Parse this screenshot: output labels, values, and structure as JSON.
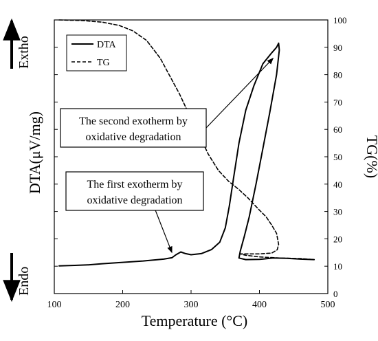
{
  "chart_data": {
    "type": "line",
    "xlabel": "Temperature (°C)",
    "ylabel_left": "DTA(μV/mg)",
    "ylabel_right": "TG(%)",
    "xlim": [
      100,
      500
    ],
    "xticks": [
      100,
      200,
      300,
      400,
      500
    ],
    "y2lim": [
      0,
      100
    ],
    "y2ticks": [
      0,
      10,
      20,
      30,
      40,
      50,
      60,
      70,
      80,
      90,
      100
    ],
    "y1lim": [
      0,
      100
    ],
    "y1_tick_labels": "none",
    "legend": {
      "placement": "top-left",
      "entries": [
        {
          "label": "DTA",
          "style": "solid"
        },
        {
          "label": "TG",
          "style": "dashed"
        }
      ]
    },
    "side_labels": {
      "top": "Extho",
      "bottom": "Endo"
    },
    "annotations": [
      {
        "line1": "The second exotherm by",
        "line2": "oxidative degradation",
        "target": [
          420,
          86
        ]
      },
      {
        "line1": "The first exotherm by",
        "line2": "oxidative degradation",
        "target": [
          272,
          15
        ]
      }
    ],
    "series": [
      {
        "name": "DTA",
        "style": "solid",
        "axis": "left",
        "points": [
          [
            107,
            10.1
          ],
          [
            130,
            10.3
          ],
          [
            150,
            10.5
          ],
          [
            170,
            10.9
          ],
          [
            200,
            11.4
          ],
          [
            230,
            11.9
          ],
          [
            260,
            12.6
          ],
          [
            272,
            13.1
          ],
          [
            278,
            14.2
          ],
          [
            285,
            15.2
          ],
          [
            292,
            14.6
          ],
          [
            300,
            14.2
          ],
          [
            315,
            14.6
          ],
          [
            330,
            16.1
          ],
          [
            342,
            18.8
          ],
          [
            350,
            24
          ],
          [
            356,
            32
          ],
          [
            362,
            42
          ],
          [
            370,
            55
          ],
          [
            380,
            67
          ],
          [
            392,
            76
          ],
          [
            405,
            84
          ],
          [
            418,
            88
          ],
          [
            425,
            90
          ],
          [
            428,
            91.5
          ],
          [
            429,
            89
          ],
          [
            425,
            80
          ],
          [
            415,
            66
          ],
          [
            405,
            53
          ],
          [
            395,
            40
          ],
          [
            385,
            28
          ],
          [
            378,
            21
          ],
          [
            372,
            15.5
          ],
          [
            370,
            13
          ],
          [
            380,
            12.4
          ],
          [
            400,
            12.5
          ],
          [
            420,
            13
          ],
          [
            440,
            12.9
          ],
          [
            460,
            12.6
          ],
          [
            480,
            12.4
          ]
        ]
      },
      {
        "name": "TG",
        "style": "dashed",
        "axis": "right",
        "points": [
          [
            107,
            100
          ],
          [
            140,
            99.8
          ],
          [
            170,
            99.2
          ],
          [
            195,
            98
          ],
          [
            215,
            96
          ],
          [
            235,
            92.5
          ],
          [
            255,
            86
          ],
          [
            270,
            79
          ],
          [
            283,
            73
          ],
          [
            298,
            65
          ],
          [
            312,
            58
          ],
          [
            325,
            51
          ],
          [
            340,
            45
          ],
          [
            355,
            41
          ],
          [
            370,
            38
          ],
          [
            383,
            35
          ],
          [
            398,
            31
          ],
          [
            410,
            28
          ],
          [
            418,
            25
          ],
          [
            425,
            22
          ],
          [
            428,
            18
          ],
          [
            426,
            16
          ],
          [
            418,
            14.8
          ],
          [
            400,
            14.5
          ],
          [
            380,
            14.5
          ],
          [
            372,
            14.5
          ],
          [
            380,
            14
          ],
          [
            400,
            13.4
          ],
          [
            430,
            13
          ],
          [
            460,
            12.8
          ],
          [
            480,
            12.4
          ]
        ]
      }
    ]
  }
}
